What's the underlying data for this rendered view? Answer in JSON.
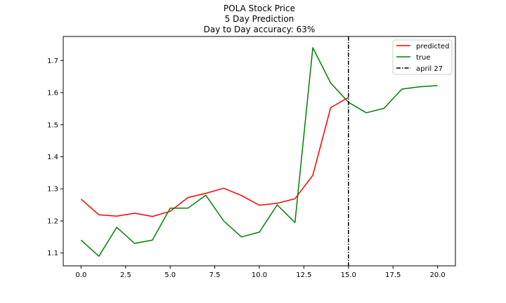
{
  "chart_data": {
    "type": "line",
    "title_lines": [
      "POLA Stock Price",
      "5 Day Prediction",
      "Day to Day accuracy: 63%"
    ],
    "xlabel": "",
    "ylabel": "",
    "xlim": [
      -1,
      21
    ],
    "ylim": [
      1.06,
      1.775
    ],
    "xticks": [
      0.0,
      2.5,
      5.0,
      7.5,
      10.0,
      12.5,
      15.0,
      17.5,
      20.0
    ],
    "xtick_labels": [
      "0.0",
      "2.5",
      "5.0",
      "7.5",
      "10.0",
      "12.5",
      "15.0",
      "17.5",
      "20.0"
    ],
    "yticks": [
      1.1,
      1.2,
      1.3,
      1.4,
      1.5,
      1.6,
      1.7
    ],
    "ytick_labels": [
      "1.1",
      "1.2",
      "1.3",
      "1.4",
      "1.5",
      "1.6",
      "1.7"
    ],
    "grid": false,
    "legend_position": "top-right",
    "series": [
      {
        "name": "predicted",
        "color": "#ff0000",
        "style": "solid",
        "x": [
          0,
          1,
          2,
          3,
          4,
          5,
          6,
          7,
          8,
          9,
          10,
          11,
          12,
          13,
          14,
          15
        ],
        "values": [
          1.268,
          1.219,
          1.215,
          1.224,
          1.214,
          1.23,
          1.273,
          1.286,
          1.302,
          1.279,
          1.249,
          1.255,
          1.269,
          1.342,
          1.553,
          1.585
        ]
      },
      {
        "name": "true",
        "color": "#008000",
        "style": "solid",
        "x": [
          0,
          1,
          2,
          3,
          4,
          5,
          6,
          7,
          8,
          9,
          10,
          11,
          12,
          13,
          14,
          15,
          16,
          17,
          18,
          19,
          20
        ],
        "values": [
          1.14,
          1.09,
          1.18,
          1.13,
          1.14,
          1.24,
          1.24,
          1.28,
          1.2,
          1.15,
          1.165,
          1.25,
          1.195,
          1.74,
          1.63,
          1.57,
          1.537,
          1.551,
          1.611,
          1.618,
          1.622
        ]
      }
    ],
    "vline": {
      "name": "april 27",
      "x": 15,
      "color": "#000000",
      "style": "dashdot"
    }
  }
}
